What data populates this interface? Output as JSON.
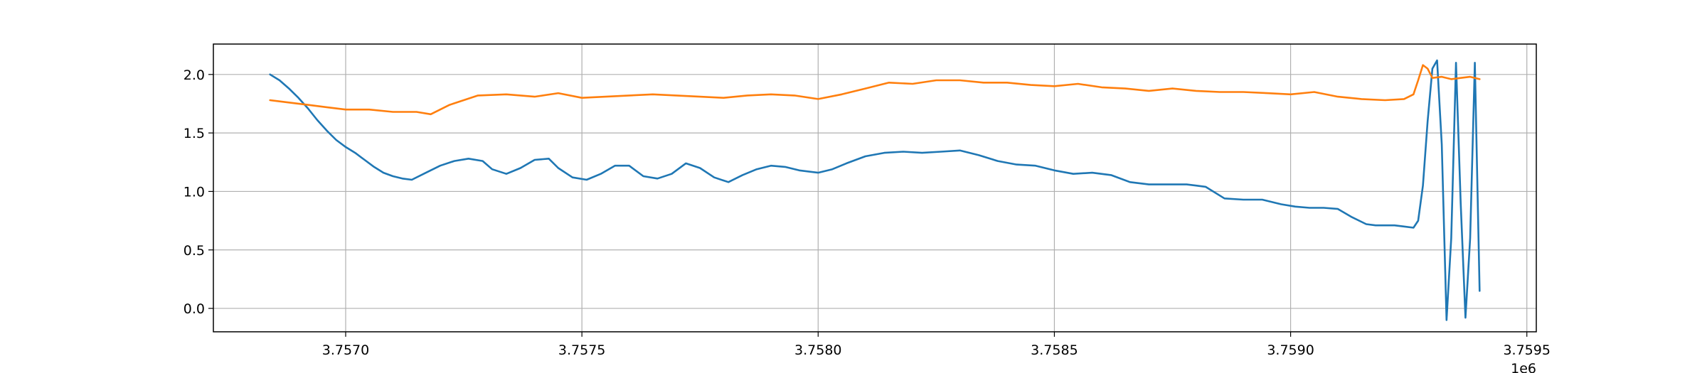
{
  "chart_data": {
    "type": "line",
    "title": "",
    "xlabel": "",
    "ylabel": "",
    "x_offset_label": "1e6",
    "xlim": [
      3.75672,
      3.75952
    ],
    "ylim": [
      -0.2,
      2.26
    ],
    "grid": true,
    "legend": "none",
    "x_ticks": [
      3.757,
      3.7575,
      3.758,
      3.7585,
      3.759,
      3.7595
    ],
    "x_tick_labels": [
      "3.7570",
      "3.7575",
      "3.7580",
      "3.7585",
      "3.7590",
      "3.7595"
    ],
    "y_ticks": [
      0.0,
      0.5,
      1.0,
      1.5,
      2.0
    ],
    "y_tick_labels": [
      "0.0",
      "0.5",
      "1.0",
      "1.5",
      "2.0"
    ],
    "series": [
      {
        "color": "#1f77b4",
        "x": [
          3.75684,
          3.75686,
          3.75688,
          3.7569,
          3.75692,
          3.75694,
          3.75696,
          3.75698,
          3.757,
          3.75702,
          3.75704,
          3.75706,
          3.75708,
          3.7571,
          3.75712,
          3.75714,
          3.75717,
          3.7572,
          3.75723,
          3.75726,
          3.75729,
          3.75731,
          3.75734,
          3.75737,
          3.7574,
          3.75743,
          3.75745,
          3.75748,
          3.75751,
          3.75754,
          3.75757,
          3.7576,
          3.75763,
          3.75766,
          3.75769,
          3.75772,
          3.75775,
          3.75778,
          3.75781,
          3.75784,
          3.75787,
          3.7579,
          3.75793,
          3.75796,
          3.758,
          3.75803,
          3.75806,
          3.7581,
          3.75814,
          3.75818,
          3.75822,
          3.75826,
          3.7583,
          3.75834,
          3.75838,
          3.75842,
          3.75846,
          3.7585,
          3.75854,
          3.75858,
          3.75862,
          3.75866,
          3.7587,
          3.75874,
          3.75878,
          3.7588,
          3.75882,
          3.75886,
          3.7589,
          3.75894,
          3.75898,
          3.75901,
          3.75904,
          3.75907,
          3.7591,
          3.75913,
          3.75916,
          3.75918,
          3.7592,
          3.75922,
          3.75924,
          3.75926,
          3.75927,
          3.75928,
          3.75929,
          3.7593,
          3.75931,
          3.75932,
          3.75933,
          3.75934,
          3.75935,
          3.75936,
          3.75937,
          3.75938,
          3.75939,
          3.7594
        ],
        "y": [
          2.0,
          1.95,
          1.88,
          1.8,
          1.71,
          1.61,
          1.52,
          1.44,
          1.38,
          1.33,
          1.27,
          1.21,
          1.16,
          1.13,
          1.11,
          1.1,
          1.16,
          1.22,
          1.26,
          1.28,
          1.26,
          1.19,
          1.15,
          1.2,
          1.27,
          1.28,
          1.2,
          1.12,
          1.1,
          1.15,
          1.22,
          1.22,
          1.13,
          1.11,
          1.15,
          1.24,
          1.2,
          1.12,
          1.08,
          1.14,
          1.19,
          1.22,
          1.21,
          1.18,
          1.16,
          1.19,
          1.24,
          1.3,
          1.33,
          1.34,
          1.33,
          1.34,
          1.35,
          1.31,
          1.26,
          1.23,
          1.22,
          1.18,
          1.15,
          1.16,
          1.14,
          1.08,
          1.06,
          1.06,
          1.06,
          1.05,
          1.04,
          0.94,
          0.93,
          0.93,
          0.89,
          0.87,
          0.86,
          0.86,
          0.85,
          0.78,
          0.72,
          0.71,
          0.71,
          0.71,
          0.7,
          0.69,
          0.75,
          1.05,
          1.6,
          2.05,
          2.12,
          1.4,
          -0.1,
          0.6,
          2.1,
          0.9,
          -0.08,
          0.6,
          2.1,
          0.15
        ]
      },
      {
        "color": "#ff7f0e",
        "x": [
          3.75684,
          3.75688,
          3.75692,
          3.75696,
          3.757,
          3.75705,
          3.7571,
          3.75715,
          3.75718,
          3.75722,
          3.75728,
          3.75734,
          3.7574,
          3.75745,
          3.7575,
          3.75755,
          3.7576,
          3.75765,
          3.7577,
          3.75775,
          3.7578,
          3.75785,
          3.7579,
          3.75795,
          3.758,
          3.75805,
          3.7581,
          3.75815,
          3.7582,
          3.75825,
          3.7583,
          3.75835,
          3.7584,
          3.75845,
          3.7585,
          3.75855,
          3.7586,
          3.75865,
          3.7587,
          3.75875,
          3.7588,
          3.75885,
          3.7589,
          3.75895,
          3.759,
          3.75905,
          3.7591,
          3.75915,
          3.7592,
          3.75924,
          3.75926,
          3.75927,
          3.75928,
          3.75929,
          3.7593,
          3.75932,
          3.75934,
          3.75936,
          3.75938,
          3.7594
        ],
        "y": [
          1.78,
          1.76,
          1.74,
          1.72,
          1.7,
          1.7,
          1.68,
          1.68,
          1.66,
          1.74,
          1.82,
          1.83,
          1.81,
          1.84,
          1.8,
          1.81,
          1.82,
          1.83,
          1.82,
          1.81,
          1.8,
          1.82,
          1.83,
          1.82,
          1.79,
          1.83,
          1.88,
          1.93,
          1.92,
          1.95,
          1.95,
          1.93,
          1.93,
          1.91,
          1.9,
          1.92,
          1.89,
          1.88,
          1.86,
          1.88,
          1.86,
          1.85,
          1.85,
          1.84,
          1.83,
          1.85,
          1.81,
          1.79,
          1.78,
          1.79,
          1.83,
          1.95,
          2.08,
          2.05,
          1.97,
          1.98,
          1.96,
          1.97,
          1.98,
          1.96
        ]
      }
    ]
  }
}
